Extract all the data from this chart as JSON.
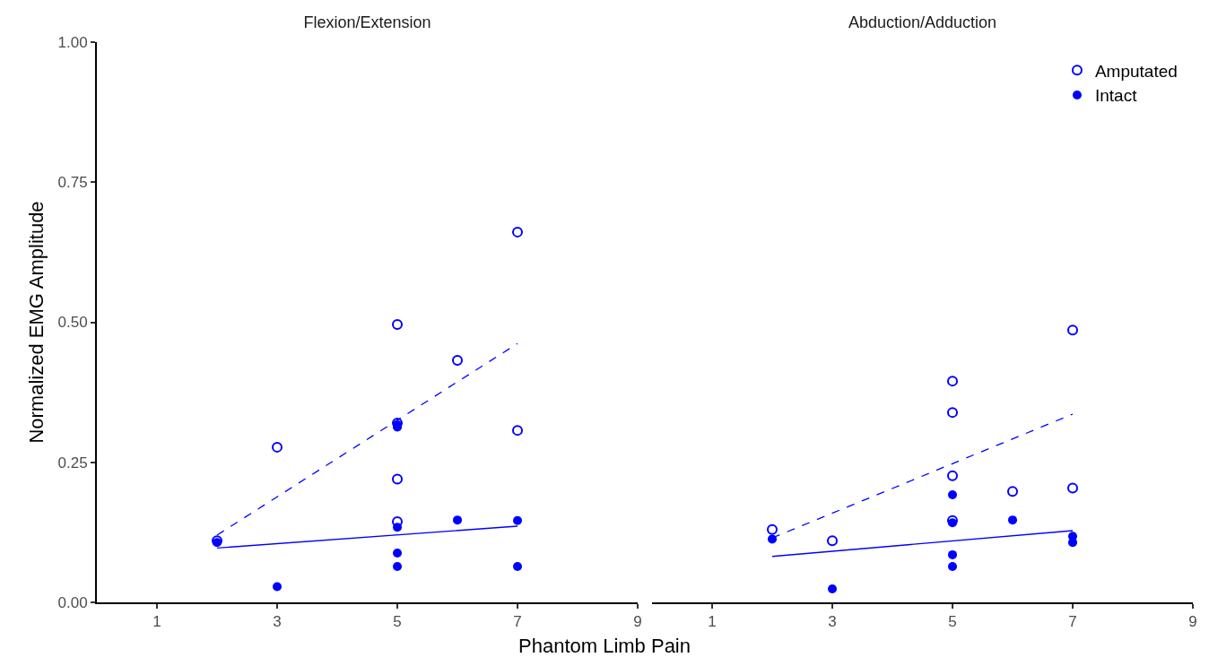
{
  "chart_data": [
    {
      "type": "scatter",
      "title": "Flexion/Extension",
      "xlabel": "Phantom Limb Pain",
      "ylabel": "Normalized EMG Amplitude",
      "xlim": [
        0,
        9
      ],
      "xticks": [
        1,
        3,
        5,
        7,
        9
      ],
      "ylim": [
        0,
        1
      ],
      "yticks": [
        {
          "value": 0,
          "label": "0.00"
        },
        {
          "value": 0.25,
          "label": "0.25"
        },
        {
          "value": 0.5,
          "label": "0.50"
        },
        {
          "value": 0.75,
          "label": "0.75"
        },
        {
          "value": 1,
          "label": "1.00"
        }
      ],
      "grid": false,
      "legend": false,
      "series": [
        {
          "marker": "circle-open",
          "color": "#0000ff",
          "x": [
            2,
            3,
            5,
            5,
            5,
            5,
            6,
            7,
            7
          ],
          "values": [
            0.11,
            0.277,
            0.496,
            0.32,
            0.22,
            0.144,
            0.432,
            0.661,
            0.307
          ]
        },
        {
          "marker": "circle",
          "color": "#0000ff",
          "x": [
            2,
            3,
            5,
            5,
            5,
            5,
            5,
            6,
            7,
            7
          ],
          "values": [
            0.107,
            0.028,
            0.317,
            0.313,
            0.134,
            0.088,
            0.064,
            0.147,
            0.146,
            0.064
          ]
        },
        {
          "type": "line",
          "line_style": "dashed",
          "marker": "none",
          "color": "#0000ff",
          "x": [
            2,
            7
          ],
          "values": [
            0.12,
            0.462
          ]
        },
        {
          "type": "line",
          "line_style": "solid",
          "marker": "none",
          "color": "#0000ff",
          "x": [
            2,
            7
          ],
          "values": [
            0.097,
            0.136
          ]
        }
      ]
    },
    {
      "type": "scatter",
      "title": "Abduction/Adduction",
      "xlim": [
        0,
        9
      ],
      "xticks": [
        1,
        3,
        5,
        7,
        9
      ],
      "ylim": [
        0,
        1
      ],
      "tick_labels": "x",
      "grid": false,
      "legend": "top right",
      "series": [
        {
          "name": "Amputated",
          "marker": "circle-open",
          "color": "#0000ff",
          "x": [
            2,
            3,
            5,
            5,
            5,
            5,
            6,
            7,
            7
          ],
          "values": [
            0.13,
            0.11,
            0.395,
            0.339,
            0.226,
            0.146,
            0.198,
            0.486,
            0.204
          ]
        },
        {
          "name": "Intact",
          "marker": "circle",
          "color": "#0000ff",
          "x": [
            2,
            3,
            5,
            5,
            5,
            5,
            6,
            7,
            7
          ],
          "values": [
            0.113,
            0.024,
            0.192,
            0.142,
            0.085,
            0.064,
            0.147,
            0.118,
            0.107
          ]
        },
        {
          "type": "line",
          "line_style": "dashed",
          "marker": "none",
          "color": "#0000ff",
          "x": [
            2,
            7
          ],
          "values": [
            0.115,
            0.336
          ]
        },
        {
          "type": "line",
          "line_style": "solid",
          "marker": "none",
          "color": "#0000ff",
          "x": [
            2,
            7
          ],
          "values": [
            0.082,
            0.128
          ]
        }
      ]
    }
  ]
}
